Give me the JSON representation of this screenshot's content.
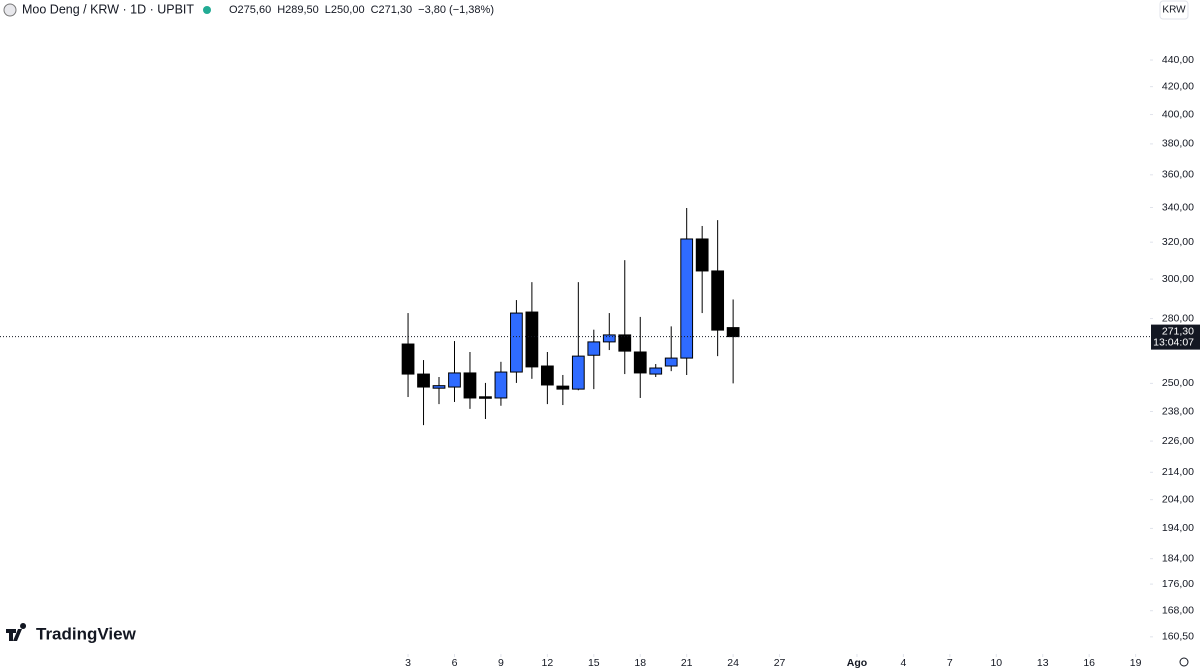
{
  "header": {
    "symbol": "Moo Deng / KRW · 1D · UPBIT",
    "quote": [
      "O275,60",
      "H289,50",
      "L250,00",
      "C271,30",
      "−3,80 (−1,38%)"
    ]
  },
  "currency_button": "KRW",
  "logo": "TradingView",
  "last_price_label": "271,30",
  "countdown": "13:04:07",
  "chart_data": {
    "type": "candlestick",
    "log_scale": true,
    "up_color": "#2f6bff",
    "down_color": "#000000",
    "x": [
      3,
      4,
      5,
      6,
      7,
      8,
      9,
      10,
      11,
      12,
      13,
      14,
      15,
      16,
      17,
      18,
      19,
      20,
      21,
      22,
      23,
      24
    ],
    "open": [
      267.8,
      254.1,
      247.9,
      248.4,
      254.6,
      244.2,
      243.7,
      255.0,
      283.2,
      257.7,
      248.8,
      247.5,
      262.6,
      268.8,
      272.1,
      264.1,
      254.1,
      257.7,
      261.3,
      321.8,
      304.3,
      275.6
    ],
    "high": [
      282.7,
      260.4,
      252.8,
      269.2,
      264.1,
      250.2,
      259.6,
      289.2,
      298.4,
      264.1,
      253.7,
      298.4,
      274.6,
      282.7,
      310.1,
      280.8,
      258.6,
      276.2,
      339.7,
      329.2,
      332.6,
      289.5
    ],
    "low": [
      244.1,
      232.4,
      241.1,
      242.0,
      239.1,
      234.9,
      240.4,
      250.2,
      252.0,
      241.1,
      240.7,
      247.0,
      247.5,
      265.0,
      254.1,
      243.7,
      252.8,
      255.4,
      253.7,
      282.7,
      262.2,
      250.0
    ],
    "close": [
      254.1,
      248.4,
      249.0,
      254.6,
      243.7,
      243.7,
      255.0,
      282.7,
      257.3,
      249.3,
      247.5,
      262.2,
      268.8,
      272.1,
      264.5,
      254.6,
      256.8,
      261.3,
      321.8,
      304.3,
      274.4,
      271.3
    ],
    "xlim": [
      -23.36,
      50.93
    ],
    "xticks": [
      3,
      6,
      9,
      12,
      15,
      18,
      21,
      24,
      27,
      {
        "value": 32,
        "label": "Ago"
      },
      {
        "value": 35,
        "label": "4"
      },
      {
        "value": 38,
        "label": "7"
      },
      {
        "value": 41,
        "label": "10"
      },
      {
        "value": 44,
        "label": "13"
      },
      {
        "value": 47,
        "label": "16"
      },
      {
        "value": 50,
        "label": "19"
      }
    ],
    "ylim": [
      156.3,
      488.7
    ],
    "yticks": [
      {
        "value": 440,
        "label": "440,00"
      },
      {
        "value": 420,
        "label": "420,00"
      },
      {
        "value": 400,
        "label": "400,00"
      },
      {
        "value": 380,
        "label": "380,00"
      },
      {
        "value": 360,
        "label": "360,00"
      },
      {
        "value": 340,
        "label": "340,00"
      },
      {
        "value": 320,
        "label": "320,00"
      },
      {
        "value": 300,
        "label": "300,00"
      },
      {
        "value": 280,
        "label": "280,00"
      },
      {
        "value": 250,
        "label": "250,00"
      },
      {
        "value": 238,
        "label": "238,00"
      },
      {
        "value": 226,
        "label": "226,00"
      },
      {
        "value": 214,
        "label": "214,00"
      },
      {
        "value": 204,
        "label": "204,00"
      },
      {
        "value": 194,
        "label": "194,00"
      },
      {
        "value": 184,
        "label": "184,00"
      },
      {
        "value": 176,
        "label": "176,00"
      },
      {
        "value": 168,
        "label": "168,00"
      },
      {
        "value": 160.5,
        "label": "160,50"
      }
    ]
  }
}
